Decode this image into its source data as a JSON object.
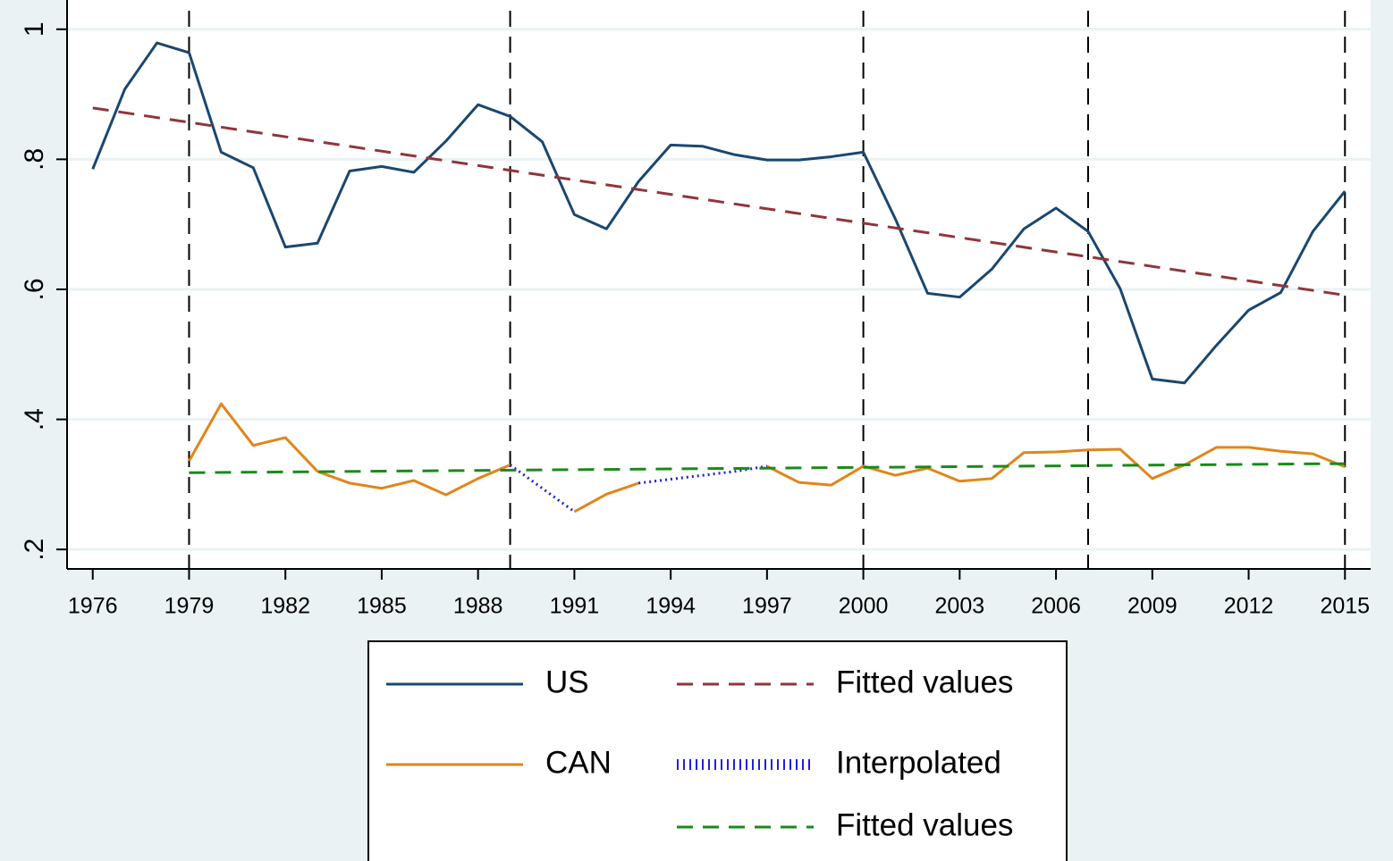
{
  "chart_data": {
    "type": "line",
    "x": [
      1976,
      1977,
      1978,
      1979,
      1980,
      1981,
      1982,
      1983,
      1984,
      1985,
      1986,
      1987,
      1988,
      1989,
      1990,
      1991,
      1992,
      1993,
      1994,
      1995,
      1996,
      1997,
      1998,
      1999,
      2000,
      2001,
      2002,
      2003,
      2004,
      2005,
      2006,
      2007,
      2008,
      2009,
      2010,
      2011,
      2012,
      2013,
      2014,
      2015
    ],
    "xlim": [
      1975.2,
      2015.8
    ],
    "xticks": [
      1976,
      1979,
      1982,
      1985,
      1988,
      1991,
      1994,
      1997,
      2000,
      2003,
      2006,
      2009,
      2012,
      2015
    ],
    "ylim": [
      0.17,
      1.045
    ],
    "yticks": [
      {
        "value": 0.2,
        "label": ".2"
      },
      {
        "value": 0.4,
        "label": ".4"
      },
      {
        "value": 0.6,
        "label": ".6"
      },
      {
        "value": 0.8,
        "label": ".8"
      },
      1
    ],
    "grid": true,
    "xlines": [
      1979,
      1989,
      2000,
      2007,
      2015
    ],
    "legend": "bottom",
    "series": [
      {
        "name": "US",
        "color": "#1a476f",
        "style": "solid",
        "values": [
          0.785,
          0.908,
          0.979,
          0.964,
          0.811,
          0.787,
          0.665,
          0.671,
          0.782,
          0.789,
          0.78,
          0.828,
          0.884,
          0.866,
          0.827,
          0.715,
          0.693,
          0.766,
          0.822,
          0.82,
          0.807,
          0.799,
          0.799,
          0.804,
          0.811,
          0.708,
          0.594,
          0.588,
          0.631,
          0.693,
          0.725,
          0.689,
          0.601,
          0.462,
          0.456,
          0.514,
          0.568,
          0.595,
          0.689,
          0.751
        ]
      },
      {
        "name": "Fitted values",
        "color": "#90353b",
        "style": "dash",
        "x": [
          1976,
          2015
        ],
        "values": [
          0.879,
          0.591
        ]
      },
      {
        "name": "CAN",
        "color": "#e0861a",
        "style": "solid",
        "values": [
          null,
          null,
          null,
          0.336,
          0.424,
          0.36,
          0.372,
          0.32,
          0.302,
          0.294,
          0.306,
          0.284,
          0.309,
          0.33,
          null,
          0.258,
          0.285,
          0.302,
          null,
          null,
          null,
          0.328,
          0.303,
          0.299,
          0.328,
          0.314,
          0.325,
          0.305,
          0.309,
          0.349,
          0.35,
          0.353,
          0.354,
          0.309,
          0.33,
          0.357,
          0.357,
          0.351,
          0.347,
          0.327
        ]
      },
      {
        "name": "Interpolated",
        "color": "#2020e0",
        "style": "dot",
        "x": [
          1989,
          1990,
          1991,
          1992,
          1993,
          1994,
          1995,
          1996,
          1997
        ],
        "values": [
          0.33,
          0.294,
          0.258,
          null,
          0.302,
          0.308,
          0.314,
          0.32,
          0.328
        ]
      },
      {
        "name": "Fitted values",
        "color": "#1a8a1a",
        "style": "dash",
        "x": [
          1979,
          2015
        ],
        "values": [
          0.318,
          0.332
        ]
      }
    ]
  }
}
